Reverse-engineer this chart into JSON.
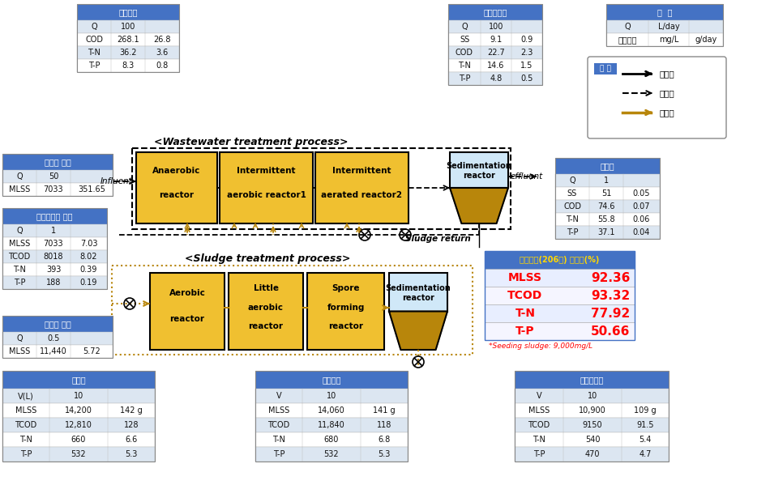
{
  "bg_color": "#ffffff",
  "header_blue": "#4472C4",
  "header_text": "#ffffff",
  "row_light": "#dce6f1",
  "row_white": "#ffffff",
  "gold_light": "#F0C030",
  "gold_dark": "#B8860B",
  "title_wastewater": "<Wastewater treatment process>",
  "title_sludge": "<Sludge treatment process>",
  "table_influent_title": "하수유입",
  "table_influent": [
    [
      "Q",
      "100",
      ""
    ],
    [
      "COD",
      "268.1",
      "26.8"
    ],
    [
      "T-N",
      "36.2",
      "3.6"
    ],
    [
      "T-P",
      "8.3",
      "0.8"
    ]
  ],
  "table_wastewater_title": "하수체리수",
  "table_wastewater": [
    [
      "Q",
      "100",
      ""
    ],
    [
      "SS",
      "9.1",
      "0.9"
    ],
    [
      "COD",
      "22.7",
      "2.3"
    ],
    [
      "T-N",
      "14.6",
      "1.5"
    ],
    [
      "T-P",
      "4.8",
      "0.5"
    ]
  ],
  "table_gubun_title": "구  분",
  "table_gubun": [
    [
      "Q",
      "L/day",
      ""
    ],
    [
      "수질항목",
      "mg/L",
      "g/day"
    ]
  ],
  "legend_title": "범 례",
  "legend_items": [
    [
      "수첸리",
      "solid"
    ],
    [
      "반류수",
      "dashed"
    ],
    [
      "슬러지",
      "gold"
    ]
  ],
  "table_return_title": "반류수",
  "table_return": [
    [
      "Q",
      "1",
      ""
    ],
    [
      "SS",
      "51",
      "0.05"
    ],
    [
      "COD",
      "74.6",
      "0.07"
    ],
    [
      "T-N",
      "55.8",
      "0.06"
    ],
    [
      "T-P",
      "37.1",
      "0.04"
    ]
  ],
  "table_sludge_r1_title": "슬러지 반송",
  "table_sludge_r1": [
    [
      "Q",
      "50",
      ""
    ],
    [
      "MLSS",
      "7033",
      "351.65"
    ]
  ],
  "table_excess_title": "잌여슬러지 유입",
  "table_excess": [
    [
      "Q",
      "1",
      ""
    ],
    [
      "MLSS",
      "7033",
      "7.03"
    ],
    [
      "TCOD",
      "8018",
      "8.02"
    ],
    [
      "T-N",
      "393",
      "0.39"
    ],
    [
      "T-P",
      "188",
      "0.19"
    ]
  ],
  "table_sludge_r2_title": "슬러지 반송",
  "table_sludge_r2": [
    [
      "Q",
      "0.5",
      ""
    ],
    [
      "MLSS",
      "11,440",
      "5.72"
    ]
  ],
  "table_pokgi_title": "폭기조",
  "table_pokgi": [
    [
      "V(L)",
      "10",
      ""
    ],
    [
      "MLSS",
      "14,200",
      "142 g"
    ],
    [
      "TCOD",
      "12,810",
      "128"
    ],
    [
      "T-N",
      "660",
      "6.6"
    ],
    [
      "T-P",
      "532",
      "5.3"
    ]
  ],
  "table_binfokgi_title": "빈폭기조",
  "table_binfokgi": [
    [
      "V",
      "10",
      ""
    ],
    [
      "MLSS",
      "14,060",
      "141 g"
    ],
    [
      "TCOD",
      "11,840",
      "118"
    ],
    [
      "T-N",
      "680",
      "6.8"
    ],
    [
      "T-P",
      "532",
      "5.3"
    ]
  ],
  "table_spore_title": "포자형성조",
  "table_spore": [
    [
      "V",
      "10",
      ""
    ],
    [
      "MLSS",
      "10,900",
      "109 g"
    ],
    [
      "TCOD",
      "9150",
      "91.5"
    ],
    [
      "T-N",
      "540",
      "5.4"
    ],
    [
      "T-P",
      "470",
      "4.7"
    ]
  ],
  "removal_title": "운전기간(206일) 제거율(%)",
  "removal_data": [
    [
      "MLSS",
      "92.36"
    ],
    [
      "TCOD",
      "93.32"
    ],
    [
      "T-N",
      "77.92"
    ],
    [
      "T-P",
      "50.66"
    ]
  ],
  "removal_note": "*Seeding sludge: 9,000mg/L"
}
